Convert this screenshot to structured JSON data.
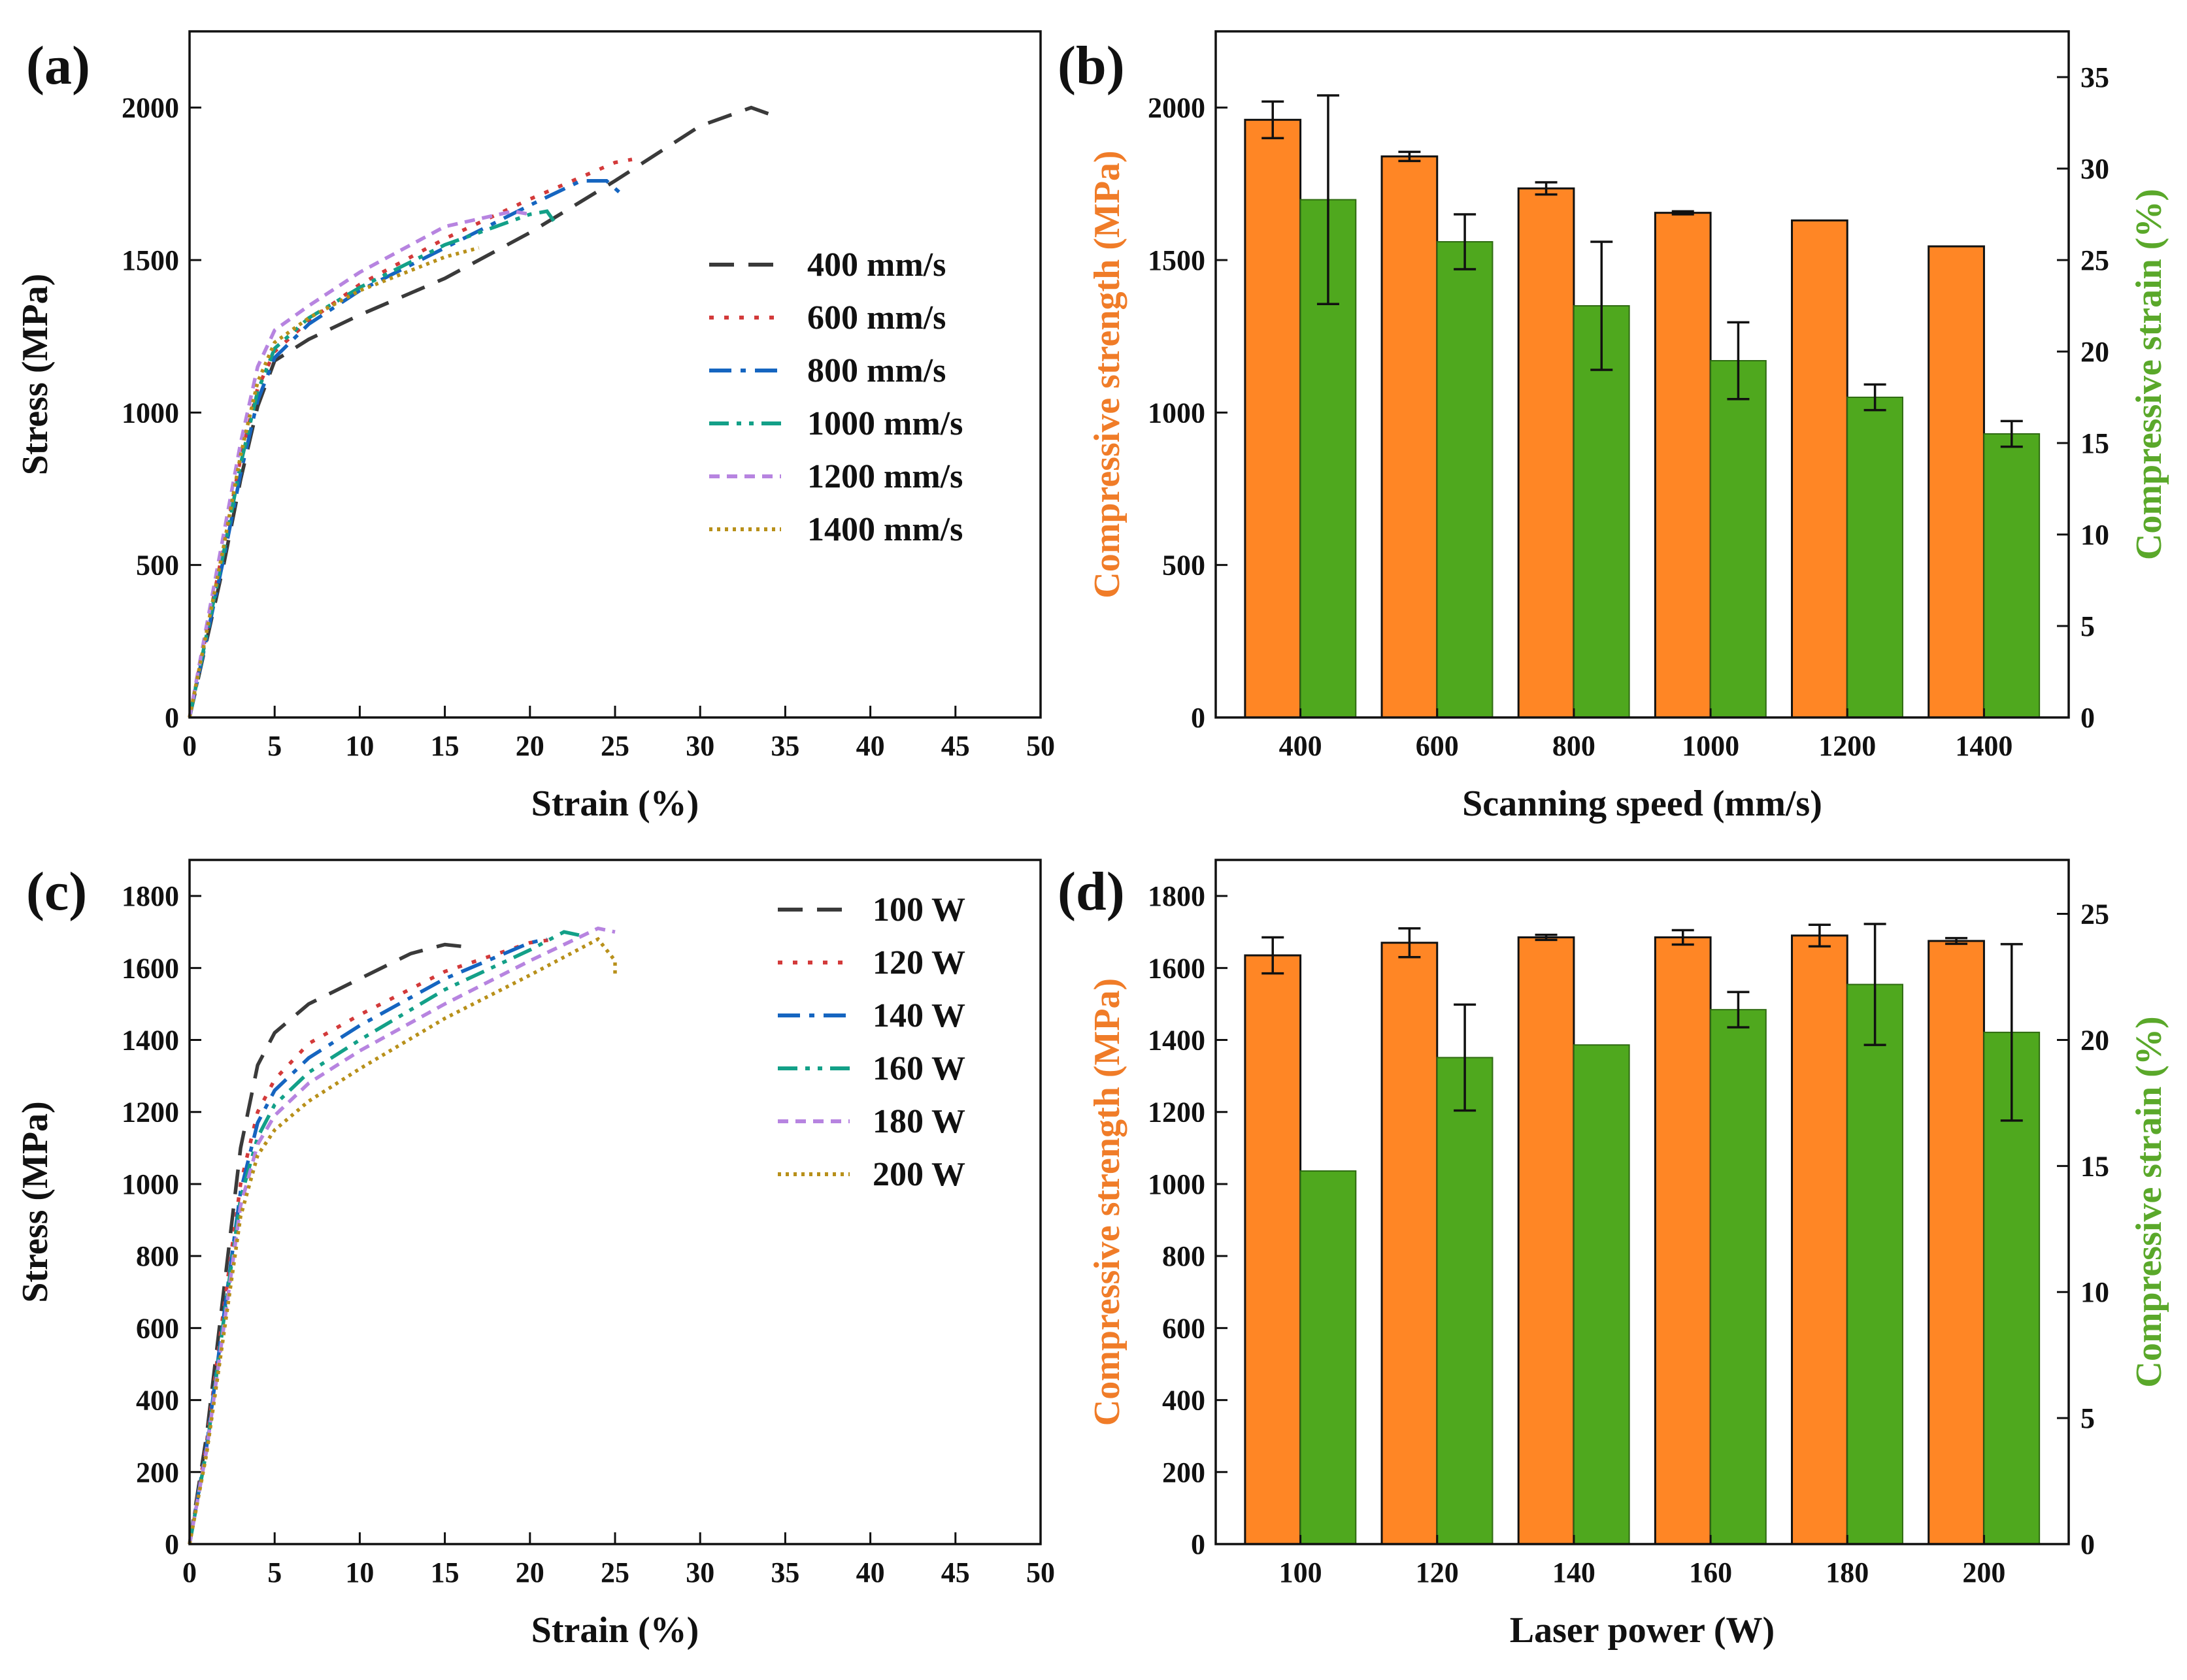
{
  "figure": {
    "panels": [
      "(a)",
      "(b)",
      "(c)",
      "(d)"
    ]
  },
  "colors": {
    "s400": "#3a3a3a",
    "s600": "#d33a3a",
    "s800": "#1565c0",
    "s1000": "#13a088",
    "s1200": "#b784e0",
    "s1400": "#b8901a",
    "bar_strength": "#ff8625",
    "bar_strain": "#4fa81e",
    "axis_strength": "#f07c28",
    "axis_strain": "#5aa82a"
  },
  "chart_data": [
    {
      "panel": "(a)",
      "type": "line",
      "xlabel": "Strain (%)",
      "ylabel": "Stress (MPa)",
      "xlim": [
        0,
        50
      ],
      "ylim": [
        0,
        2250
      ],
      "xticks": [
        0,
        5,
        10,
        15,
        20,
        25,
        30,
        35,
        40,
        45,
        50
      ],
      "yticks": [
        0,
        500,
        1000,
        1500,
        2000
      ],
      "legend_position": "center-right",
      "series": [
        {
          "name": "400 mm/s",
          "color": "s400",
          "dash": "dash",
          "points": [
            [
              0,
              0
            ],
            [
              1,
              250
            ],
            [
              2,
              500
            ],
            [
              3,
              780
            ],
            [
              4,
              1020
            ],
            [
              5,
              1170
            ],
            [
              7,
              1240
            ],
            [
              10,
              1320
            ],
            [
              15,
              1440
            ],
            [
              20,
              1590
            ],
            [
              25,
              1760
            ],
            [
              30,
              1940
            ],
            [
              33,
              2000
            ],
            [
              34,
              1980
            ]
          ]
        },
        {
          "name": "600 mm/s",
          "color": "s600",
          "dash": "dot",
          "points": [
            [
              0,
              0
            ],
            [
              1,
              280
            ],
            [
              2,
              560
            ],
            [
              3,
              850
            ],
            [
              4,
              1080
            ],
            [
              5,
              1200
            ],
            [
              7,
              1300
            ],
            [
              10,
              1420
            ],
            [
              15,
              1570
            ],
            [
              20,
              1700
            ],
            [
              25,
              1820
            ],
            [
              26,
              1830
            ]
          ]
        },
        {
          "name": "800 mm/s",
          "color": "s800",
          "dash": "dashdot",
          "points": [
            [
              0,
              0
            ],
            [
              1,
              260
            ],
            [
              2,
              520
            ],
            [
              3,
              800
            ],
            [
              4,
              1040
            ],
            [
              5,
              1180
            ],
            [
              7,
              1290
            ],
            [
              10,
              1400
            ],
            [
              15,
              1540
            ],
            [
              20,
              1680
            ],
            [
              23,
              1760
            ],
            [
              24.5,
              1760
            ],
            [
              25.5,
              1710
            ]
          ]
        },
        {
          "name": "1000 mm/s",
          "color": "s1000",
          "dash": "dashdotdot",
          "points": [
            [
              0,
              0
            ],
            [
              1,
              270
            ],
            [
              2,
              540
            ],
            [
              3,
              830
            ],
            [
              4,
              1070
            ],
            [
              5,
              1210
            ],
            [
              7,
              1310
            ],
            [
              10,
              1410
            ],
            [
              15,
              1550
            ],
            [
              20,
              1650
            ],
            [
              21,
              1660
            ],
            [
              21.5,
              1620
            ]
          ]
        },
        {
          "name": "1200 mm/s",
          "color": "s1200",
          "dash": "shortdash",
          "points": [
            [
              0,
              0
            ],
            [
              1,
              300
            ],
            [
              2,
              600
            ],
            [
              3,
              900
            ],
            [
              4,
              1150
            ],
            [
              5,
              1270
            ],
            [
              7,
              1350
            ],
            [
              10,
              1460
            ],
            [
              15,
              1610
            ],
            [
              19,
              1660
            ],
            [
              20,
              1650
            ]
          ]
        },
        {
          "name": "1400 mm/s",
          "color": "s1400",
          "dash": "shortdot",
          "points": [
            [
              0,
              0
            ],
            [
              1,
              280
            ],
            [
              2,
              560
            ],
            [
              3,
              860
            ],
            [
              4,
              1100
            ],
            [
              5,
              1230
            ],
            [
              7,
              1310
            ],
            [
              10,
              1400
            ],
            [
              15,
              1510
            ],
            [
              17,
              1540
            ]
          ]
        }
      ]
    },
    {
      "panel": "(b)",
      "type": "bar",
      "xlabel": "Scanning speed (mm/s)",
      "ylabel": "Compressive strength (MPa)",
      "y2label": "Compressive strain (%)",
      "categories": [
        "400",
        "600",
        "800",
        "1000",
        "1200",
        "1400"
      ],
      "ylim": [
        0,
        2250
      ],
      "y2lim": [
        0,
        37.5
      ],
      "yticks": [
        0,
        500,
        1000,
        1500,
        2000
      ],
      "y2ticks": [
        0,
        5,
        10,
        15,
        20,
        25,
        30,
        35
      ],
      "series": [
        {
          "name": "Compressive strength",
          "axis": "left",
          "color": "bar_strength",
          "values": [
            1960,
            1840,
            1735,
            1655,
            1630,
            1545
          ],
          "errors": [
            60,
            15,
            20,
            5,
            0,
            0
          ]
        },
        {
          "name": "Compressive strain",
          "axis": "right",
          "color": "bar_strain",
          "values": [
            28.3,
            26.0,
            22.5,
            19.5,
            17.5,
            15.5
          ],
          "errors": [
            5.7,
            1.5,
            3.5,
            2.1,
            0.7,
            0.7
          ]
        }
      ]
    },
    {
      "panel": "(c)",
      "type": "line",
      "xlabel": "Strain (%)",
      "ylabel": "Stress (MPa)",
      "xlim": [
        0,
        50
      ],
      "ylim": [
        0,
        1900
      ],
      "xticks": [
        0,
        5,
        10,
        15,
        20,
        25,
        30,
        35,
        40,
        45,
        50
      ],
      "yticks": [
        0,
        200,
        400,
        600,
        800,
        1000,
        1200,
        1400,
        1600,
        1800
      ],
      "legend_position": "top-right",
      "series": [
        {
          "name": "100 W",
          "color": "s400",
          "dash": "dash",
          "points": [
            [
              0,
              0
            ],
            [
              1,
              300
            ],
            [
              2,
              700
            ],
            [
              3,
              1100
            ],
            [
              4,
              1330
            ],
            [
              5,
              1420
            ],
            [
              7,
              1500
            ],
            [
              10,
              1570
            ],
            [
              13,
              1640
            ],
            [
              15,
              1665
            ],
            [
              16,
              1660
            ]
          ]
        },
        {
          "name": "120 W",
          "color": "s600",
          "dash": "dot",
          "points": [
            [
              0,
              0
            ],
            [
              1,
              280
            ],
            [
              2,
              650
            ],
            [
              3,
              1000
            ],
            [
              4,
              1200
            ],
            [
              5,
              1290
            ],
            [
              7,
              1390
            ],
            [
              10,
              1470
            ],
            [
              15,
              1590
            ],
            [
              20,
              1670
            ],
            [
              21.5,
              1680
            ]
          ]
        },
        {
          "name": "140 W",
          "color": "s800",
          "dash": "dashdot",
          "points": [
            [
              0,
              0
            ],
            [
              1,
              270
            ],
            [
              2,
              630
            ],
            [
              3,
              980
            ],
            [
              4,
              1170
            ],
            [
              5,
              1260
            ],
            [
              7,
              1350
            ],
            [
              10,
              1440
            ],
            [
              15,
              1570
            ],
            [
              20,
              1670
            ],
            [
              21,
              1680
            ]
          ]
        },
        {
          "name": "160 W",
          "color": "s1000",
          "dash": "dashdotdot",
          "points": [
            [
              0,
              0
            ],
            [
              1,
              260
            ],
            [
              2,
              620
            ],
            [
              3,
              960
            ],
            [
              4,
              1130
            ],
            [
              5,
              1220
            ],
            [
              7,
              1310
            ],
            [
              10,
              1400
            ],
            [
              15,
              1540
            ],
            [
              20,
              1650
            ],
            [
              22,
              1700
            ],
            [
              23,
              1690
            ]
          ]
        },
        {
          "name": "180 W",
          "color": "s1200",
          "dash": "shortdash",
          "points": [
            [
              0,
              0
            ],
            [
              1,
              260
            ],
            [
              2,
              600
            ],
            [
              3,
              940
            ],
            [
              4,
              1110
            ],
            [
              5,
              1190
            ],
            [
              7,
              1280
            ],
            [
              10,
              1370
            ],
            [
              15,
              1500
            ],
            [
              20,
              1620
            ],
            [
              24,
              1710
            ],
            [
              25,
              1700
            ]
          ]
        },
        {
          "name": "200 W",
          "color": "s1400",
          "dash": "shortdot",
          "points": [
            [
              0,
              0
            ],
            [
              1,
              250
            ],
            [
              2,
              580
            ],
            [
              3,
              910
            ],
            [
              4,
              1080
            ],
            [
              5,
              1150
            ],
            [
              7,
              1230
            ],
            [
              10,
              1320
            ],
            [
              15,
              1460
            ],
            [
              20,
              1580
            ],
            [
              24,
              1680
            ],
            [
              25,
              1620
            ],
            [
              25,
              1580
            ]
          ]
        }
      ]
    },
    {
      "panel": "(d)",
      "type": "bar",
      "xlabel": "Laser power (W)",
      "ylabel": "Compressive strength (MPa)",
      "y2label": "Compressive strain (%)",
      "categories": [
        "100",
        "120",
        "140",
        "160",
        "180",
        "200"
      ],
      "ylim": [
        0,
        1900
      ],
      "y2lim": [
        0,
        27.14
      ],
      "yticks": [
        0,
        200,
        400,
        600,
        800,
        1000,
        1200,
        1400,
        1600,
        1800
      ],
      "y2ticks": [
        0,
        5,
        10,
        15,
        20,
        25
      ],
      "series": [
        {
          "name": "Compressive strength",
          "axis": "left",
          "color": "bar_strength",
          "values": [
            1635,
            1670,
            1685,
            1685,
            1690,
            1675
          ],
          "errors": [
            50,
            40,
            7,
            20,
            30,
            8
          ]
        },
        {
          "name": "Compressive strain",
          "axis": "right",
          "color": "bar_strain",
          "values": [
            14.8,
            19.3,
            19.8,
            21.2,
            22.2,
            20.3
          ],
          "errors": [
            0,
            2.1,
            0,
            0.7,
            2.4,
            3.5
          ]
        }
      ]
    }
  ]
}
